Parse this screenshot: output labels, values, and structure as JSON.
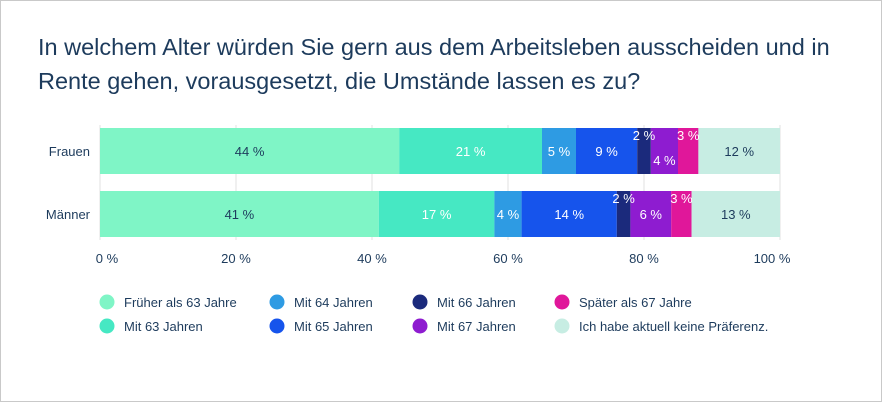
{
  "title": "In welchem Alter würden Sie gern aus dem Arbeitsleben ausscheiden und in Rente gehen, vorausgesetzt, die Umstände lassen es zu?",
  "chart_data": {
    "type": "bar",
    "orientation": "horizontal",
    "stacked": true,
    "categories": [
      "Frauen",
      "Männer"
    ],
    "series": [
      {
        "name": "Früher als 63 Jahre",
        "color": "#7ff5c6",
        "label_color": "#1d3b5c",
        "values": [
          44,
          41
        ],
        "labels": [
          "44 %",
          "41 %"
        ]
      },
      {
        "name": "Mit 63 Jahren",
        "color": "#46e8c3",
        "label_color": "#ffffff",
        "values": [
          21,
          17
        ],
        "labels": [
          "21 %",
          "17 %"
        ]
      },
      {
        "name": "Mit 64 Jahren",
        "color": "#2e9be3",
        "label_color": "#ffffff",
        "values": [
          5,
          4
        ],
        "labels": [
          "5 %",
          "4 %"
        ]
      },
      {
        "name": "Mit 65 Jahren",
        "color": "#1654ec",
        "label_color": "#ffffff",
        "values": [
          9,
          14
        ],
        "labels": [
          "9 %",
          "14 %"
        ]
      },
      {
        "name": "Mit 66 Jahren",
        "color": "#1b2a7c",
        "label_color": "#ffffff",
        "values": [
          2,
          2
        ],
        "labels": [
          "2 %",
          "2 %"
        ]
      },
      {
        "name": "Mit 67 Jahren",
        "color": "#8e1cd0",
        "label_color": "#ffffff",
        "values": [
          4,
          6
        ],
        "labels": [
          "4 %",
          "6 %"
        ]
      },
      {
        "name": "Später als 67 Jahre",
        "color": "#e0179a",
        "label_color": "#ffffff",
        "values": [
          3,
          3
        ],
        "labels": [
          "3 %",
          "3 %"
        ]
      },
      {
        "name": "Ich habe aktuell keine Präferenz.",
        "color": "#c7ede3",
        "label_color": "#1d3b5c",
        "values": [
          12,
          13
        ],
        "labels": [
          "12 %",
          "13 %"
        ]
      }
    ],
    "xlim": [
      0,
      100
    ],
    "xticks": [
      "0 %",
      "20 %",
      "40 %",
      "60 %",
      "80 %",
      "100 %"
    ],
    "grid": true,
    "legend_position": "bottom"
  }
}
